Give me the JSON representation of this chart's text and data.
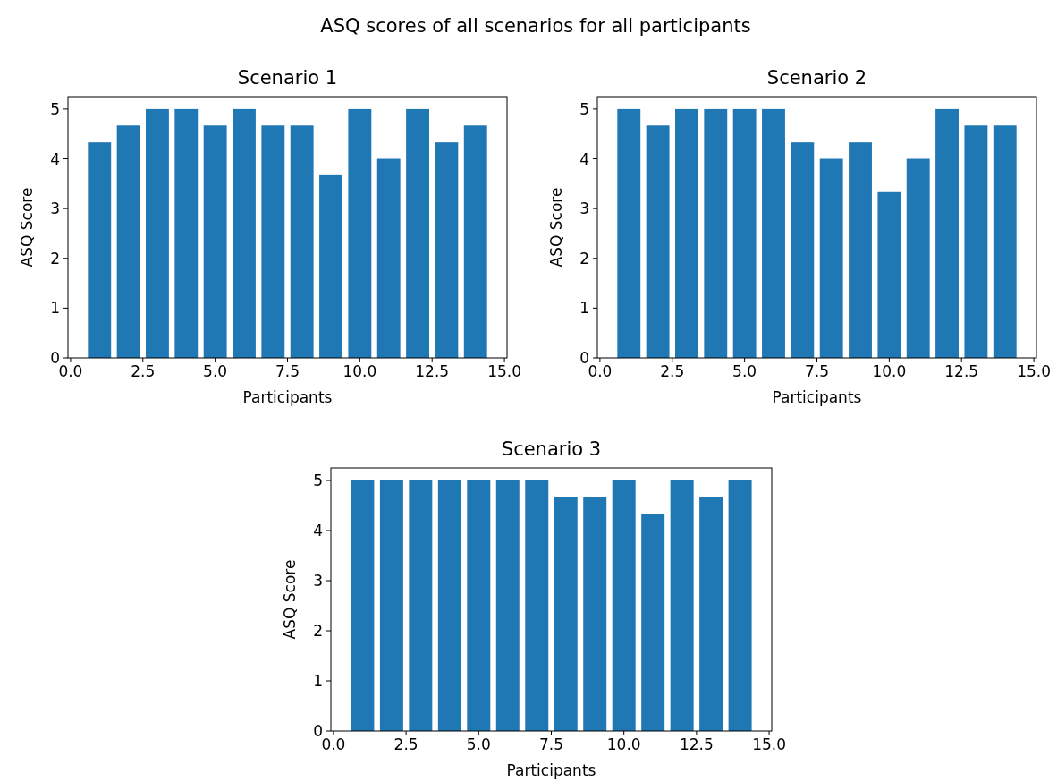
{
  "chart_data": [
    {
      "type": "bar",
      "title": "Scenario 1",
      "annotations": [
        "ASQ scores of all scenarios for all participants"
      ],
      "xlabel": "Participants",
      "ylabel": "ASQ Score",
      "x": [
        1,
        2,
        3,
        4,
        5,
        6,
        7,
        8,
        9,
        10,
        11,
        12,
        13,
        14
      ],
      "values": [
        4.33,
        4.67,
        5,
        5,
        4.67,
        5,
        4.67,
        4.67,
        3.67,
        5,
        4,
        5,
        4.33,
        4.67
      ],
      "color": "#1f77b4",
      "xlim": [
        -0.09,
        15.09
      ],
      "xticks": [
        {
          "value": 0,
          "label": "0.0"
        },
        {
          "value": 2.5,
          "label": "2.5"
        },
        {
          "value": 5,
          "label": "5.0"
        },
        {
          "value": 7.5,
          "label": "7.5"
        },
        {
          "value": 10,
          "label": "10.0"
        },
        {
          "value": 12.5,
          "label": "12.5"
        },
        {
          "value": 15,
          "label": "15.0"
        }
      ],
      "ylim": [
        0,
        5.25
      ],
      "yticks": [
        0,
        1,
        2,
        3,
        4,
        5
      ],
      "grid": false
    },
    {
      "type": "bar",
      "title": "Scenario 2",
      "xlabel": "Participants",
      "ylabel": "ASQ Score",
      "x": [
        1,
        2,
        3,
        4,
        5,
        6,
        7,
        8,
        9,
        10,
        11,
        12,
        13,
        14
      ],
      "values": [
        5,
        4.67,
        5,
        5,
        5,
        5,
        4.33,
        4,
        4.33,
        3.33,
        4,
        5,
        4.67,
        4.67
      ],
      "color": "#1f77b4",
      "xlim": [
        -0.09,
        15.09
      ],
      "xticks": [
        {
          "value": 0,
          "label": "0.0"
        },
        {
          "value": 2.5,
          "label": "2.5"
        },
        {
          "value": 5,
          "label": "5.0"
        },
        {
          "value": 7.5,
          "label": "7.5"
        },
        {
          "value": 10,
          "label": "10.0"
        },
        {
          "value": 12.5,
          "label": "12.5"
        },
        {
          "value": 15,
          "label": "15.0"
        }
      ],
      "ylim": [
        0,
        5.25
      ],
      "yticks": [
        0,
        1,
        2,
        3,
        4,
        5
      ],
      "grid": false
    },
    {
      "type": "bar",
      "title": "Scenario 3",
      "xlabel": "Participants",
      "ylabel": "ASQ Score",
      "x": [
        1,
        2,
        3,
        4,
        5,
        6,
        7,
        8,
        9,
        10,
        11,
        12,
        13,
        14
      ],
      "values": [
        5,
        5,
        5,
        5,
        5,
        5,
        5,
        4.67,
        4.67,
        5,
        4.33,
        5,
        4.67,
        5
      ],
      "color": "#1f77b4",
      "xlim": [
        -0.09,
        15.09
      ],
      "xticks": [
        {
          "value": 0,
          "label": "0.0"
        },
        {
          "value": 2.5,
          "label": "2.5"
        },
        {
          "value": 5,
          "label": "5.0"
        },
        {
          "value": 7.5,
          "label": "7.5"
        },
        {
          "value": 10,
          "label": "10.0"
        },
        {
          "value": 12.5,
          "label": "12.5"
        },
        {
          "value": 15,
          "label": "15.0"
        }
      ],
      "ylim": [
        0,
        5.25
      ],
      "yticks": [
        0,
        1,
        2,
        3,
        4,
        5
      ],
      "grid": false
    }
  ]
}
